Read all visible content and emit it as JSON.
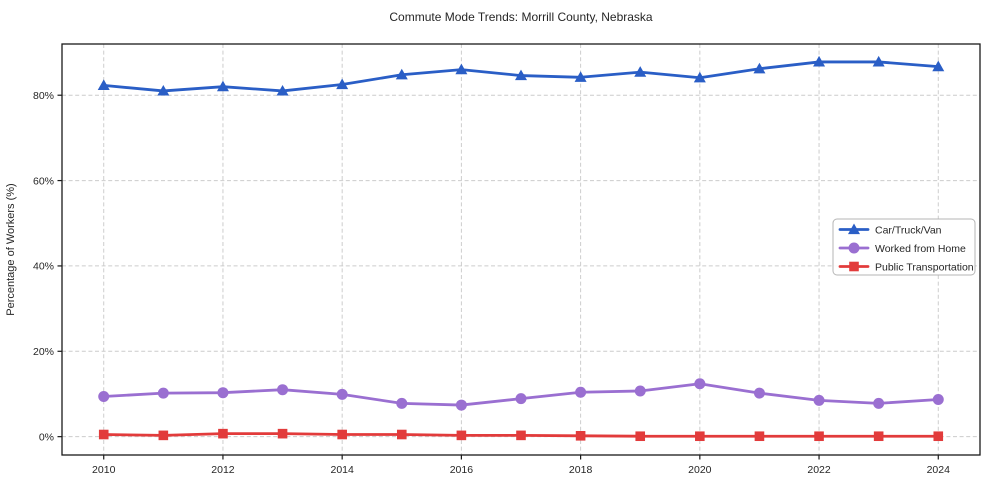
{
  "figure": {
    "background": "#ffffff",
    "frame_color": "#1a1a1a",
    "text_color": "#262626",
    "grid_color": "#cccccc"
  },
  "chart_data": {
    "type": "line",
    "title": "Commute Mode Trends: Morrill County, Nebraska",
    "xlabel": "",
    "ylabel": "Percentage of Workers (%)",
    "x": [
      2010,
      2011,
      2012,
      2013,
      2014,
      2015,
      2016,
      2017,
      2018,
      2019,
      2020,
      2021,
      2022,
      2023,
      2024
    ],
    "series": [
      {
        "name": "Car/Truck/Van",
        "color": "#2a5ec6",
        "marker": "triangle",
        "values": [
          82.3,
          81.0,
          82.0,
          81.0,
          82.5,
          84.8,
          86.0,
          84.6,
          84.2,
          85.4,
          84.1,
          86.2,
          87.8,
          87.8,
          86.7
        ]
      },
      {
        "name": "Worked from Home",
        "color": "#9a6fd1",
        "marker": "circle",
        "values": [
          9.4,
          10.2,
          10.3,
          11.0,
          9.9,
          7.8,
          7.4,
          8.9,
          10.4,
          10.7,
          12.4,
          10.2,
          8.5,
          7.8,
          8.7
        ]
      },
      {
        "name": "Public Transportation",
        "color": "#e23b3b",
        "marker": "square",
        "values": [
          0.5,
          0.3,
          0.7,
          0.7,
          0.5,
          0.5,
          0.3,
          0.3,
          0.2,
          0.1,
          0.1,
          0.1,
          0.1,
          0.1,
          0.1
        ]
      }
    ],
    "xlim": [
      2009.3,
      2024.7
    ],
    "ylim": [
      -4.3,
      92.0
    ],
    "xticks": [
      2010,
      2012,
      2014,
      2016,
      2018,
      2020,
      2022,
      2024
    ],
    "xtick_labels": [
      "2010",
      "2012",
      "2014",
      "2016",
      "2018",
      "2020",
      "2022",
      "2024"
    ],
    "yticks": [
      0,
      20,
      40,
      60,
      80
    ],
    "ytick_labels": [
      "0%",
      "20%",
      "40%",
      "60%",
      "80%"
    ],
    "grid": true,
    "grid_style": "dashed",
    "legend": {
      "position": "center-right",
      "entries": [
        "Car/Truck/Van",
        "Worked from Home",
        "Public Transportation"
      ]
    }
  }
}
